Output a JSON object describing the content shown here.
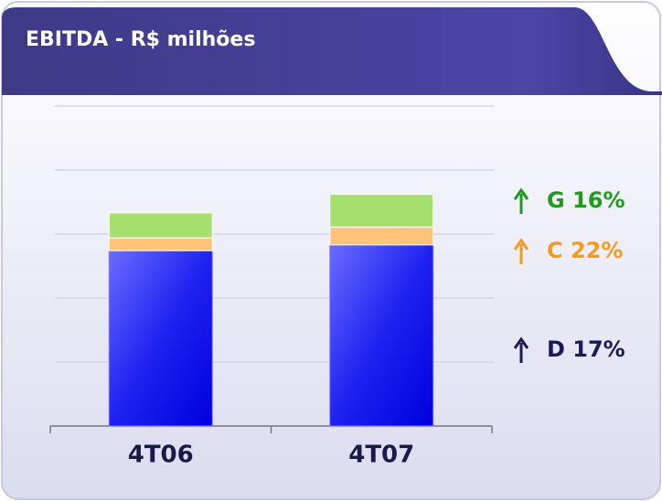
{
  "chart_data": {
    "type": "bar",
    "stacked": true,
    "title": "EBITDA - R$ milhões",
    "categories": [
      "4T06",
      "4T07"
    ],
    "series": [
      {
        "color": "#2a2cf0",
        "values": [
          2.74,
          2.83
        ]
      },
      {
        "color": "#ffc47a",
        "values": [
          0.2,
          0.28
        ]
      },
      {
        "color": "#a6df6e",
        "values": [
          0.39,
          0.51
        ]
      }
    ],
    "ylim": [
      0,
      5
    ],
    "yticks": [
      0,
      1,
      2,
      3,
      4,
      5
    ],
    "grid": true,
    "annotations": [
      {
        "text": "G 16%",
        "color": "#1f9a1f"
      },
      {
        "text": "C 22%",
        "color": "#f59a1a"
      },
      {
        "text": "D 17%",
        "color": "#1a1a5a"
      }
    ]
  }
}
